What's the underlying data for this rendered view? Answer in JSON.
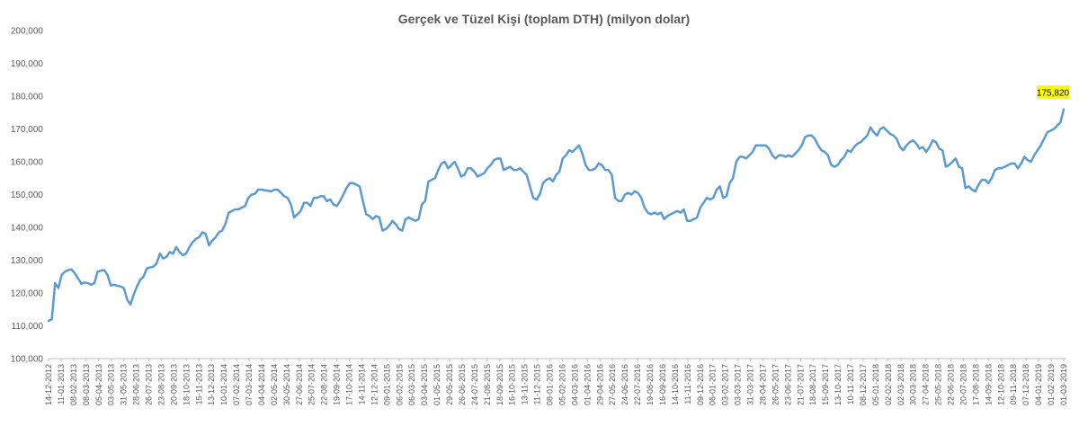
{
  "chart_data": {
    "type": "line",
    "title": "Gerçek ve Tüzel Kişi (toplam DTH) (milyon dolar)",
    "xlabel": "",
    "ylabel": "",
    "ylim": [
      100000,
      200000
    ],
    "yticks": [
      "100,000",
      "110,000",
      "120,000",
      "130,000",
      "140,000",
      "150,000",
      "160,000",
      "170,000",
      "180,000",
      "190,000",
      "200,000"
    ],
    "grid": false,
    "legend": "none",
    "colors": {
      "line": "#5b9bd5",
      "callout_bg": "#ffff00",
      "axis": "#bfbfbf",
      "text": "#595959"
    },
    "x_tick_labels": [
      "14-12-2012",
      "11-01-2013",
      "08-02-2013",
      "08-03-2013",
      "05-04-2013",
      "03-05-2013",
      "31-05-2013",
      "28-06-2013",
      "26-07-2013",
      "23-08-2013",
      "20-09-2013",
      "18-10-2013",
      "15-11-2013",
      "13-12-2013",
      "10-01-2014",
      "07-02-2014",
      "07-03-2014",
      "04-04-2014",
      "02-05-2014",
      "30-05-2014",
      "27-06-2014",
      "25-07-2014",
      "22-08-2014",
      "19-09-2014",
      "17-10-2014",
      "14-11-2014",
      "12-12-2014",
      "09-01-2015",
      "06-02-2015",
      "06-03-2015",
      "03-04-2015",
      "01-05-2015",
      "29-05-2015",
      "26-06-2015",
      "24-07-2015",
      "21-08-2015",
      "18-09-2015",
      "16-10-2015",
      "13-11-2015",
      "11-12-2015",
      "08-01-2016",
      "05-02-2016",
      "04-03-2016",
      "01-04-2016",
      "29-04-2016",
      "27-05-2016",
      "24-06-2016",
      "22-07-2016",
      "19-08-2016",
      "16-09-2016",
      "14-10-2016",
      "11-11-2016",
      "09-12-2016",
      "06-01-2017",
      "03-02-2017",
      "03-03-2017",
      "31-03-2017",
      "28-04-2017",
      "26-05-2017",
      "23-06-2017",
      "21-07-2017",
      "18-08-2017",
      "15-09-2017",
      "13-10-2017",
      "10-11-2017",
      "08-12-2017",
      "05-01-2018",
      "02-02-2018",
      "02-03-2018",
      "30-03-2018",
      "27-04-2018",
      "25-05-2018",
      "22-06-2018",
      "20-07-2018",
      "17-08-2018",
      "14-09-2018",
      "12-10-2018",
      "09-11-2018",
      "07-12-2018",
      "04-01-2019",
      "01-02-2019",
      "01-03-2019"
    ],
    "series": [
      {
        "name": "",
        "values": [
          111500,
          112000,
          123000,
          121500,
          125500,
          126500,
          127000,
          127200,
          126000,
          124500,
          122800,
          123200,
          123000,
          122500,
          123000,
          126500,
          126800,
          127000,
          125500,
          122300,
          122500,
          122200,
          122000,
          121500,
          118000,
          116500,
          119500,
          122000,
          124000,
          125000,
          127500,
          127800,
          128000,
          129000,
          132000,
          130500,
          131000,
          132500,
          132000,
          134000,
          132500,
          131500,
          132000,
          134000,
          135500,
          136500,
          137000,
          138500,
          138000,
          134500,
          136000,
          137000,
          138500,
          139000,
          141000,
          144500,
          145000,
          145500,
          145500,
          146000,
          146500,
          149000,
          150000,
          150200,
          151500,
          151500,
          151300,
          151200,
          151000,
          151500,
          151500,
          150500,
          149500,
          149000,
          147000,
          143000,
          144000,
          145000,
          147500,
          147500,
          146500,
          149000,
          149000,
          149500,
          149500,
          148000,
          148500,
          147000,
          146500,
          148000,
          150000,
          152000,
          153500,
          153500,
          153000,
          152500,
          148000,
          144000,
          143500,
          142500,
          143500,
          143000,
          139000,
          139500,
          140500,
          142000,
          141000,
          139500,
          139000,
          142500,
          143000,
          142500,
          142000,
          142500,
          147000,
          148000,
          154000,
          154500,
          155000,
          157500,
          159500,
          160000,
          158000,
          159000,
          160000,
          158000,
          155500,
          156000,
          158000,
          158000,
          157000,
          155500,
          156000,
          156500,
          158000,
          159000,
          160500,
          161000,
          161000,
          157500,
          158000,
          158500,
          157500,
          157500,
          158000,
          157000,
          156000,
          152500,
          149000,
          148500,
          150000,
          153500,
          154500,
          155000,
          154000,
          156000,
          157000,
          161000,
          162000,
          163500,
          163000,
          164000,
          165000,
          162500,
          159000,
          157500,
          157500,
          158000,
          159500,
          159000,
          157500,
          157500,
          156000,
          149000,
          148000,
          148000,
          150000,
          150500,
          150000,
          151000,
          150500,
          149000,
          146000,
          144500,
          144000,
          144500,
          144000,
          144500,
          142500,
          143500,
          144000,
          144500,
          145000,
          144500,
          145500,
          142000,
          142000,
          142500,
          143000,
          146000,
          147500,
          149000,
          148500,
          149000,
          151500,
          152500,
          149000,
          149500,
          153500,
          155000,
          160000,
          161500,
          161500,
          161000,
          162000,
          163000,
          165000,
          165000,
          165000,
          165000,
          164000,
          162000,
          161000,
          162000,
          162000,
          161500,
          162000,
          161500,
          162500,
          163500,
          165000,
          167500,
          168000,
          168000,
          167000,
          165000,
          163500,
          163000,
          162000,
          159000,
          158500,
          159000,
          160500,
          161500,
          163500,
          163000,
          164500,
          165500,
          166000,
          167000,
          168000,
          170500,
          169000,
          168000,
          170000,
          170500,
          169500,
          168500,
          168000,
          167000,
          164500,
          163500,
          165000,
          166000,
          166500,
          165500,
          164000,
          164500,
          163000,
          164500,
          166500,
          166000,
          164000,
          163500,
          158500,
          159000,
          160000,
          161000,
          158500,
          158000,
          152000,
          152500,
          151500,
          151000,
          153000,
          154500,
          154500,
          153500,
          155000,
          157500,
          158000,
          158000,
          158500,
          159000,
          159500,
          159500,
          158000,
          159500,
          161500,
          160500,
          160000,
          162000,
          163500,
          165000,
          167000,
          169000,
          169500,
          170000,
          171000,
          172000,
          176000
        ]
      }
    ],
    "annotations": [
      {
        "text": "175,820"
      }
    ]
  }
}
